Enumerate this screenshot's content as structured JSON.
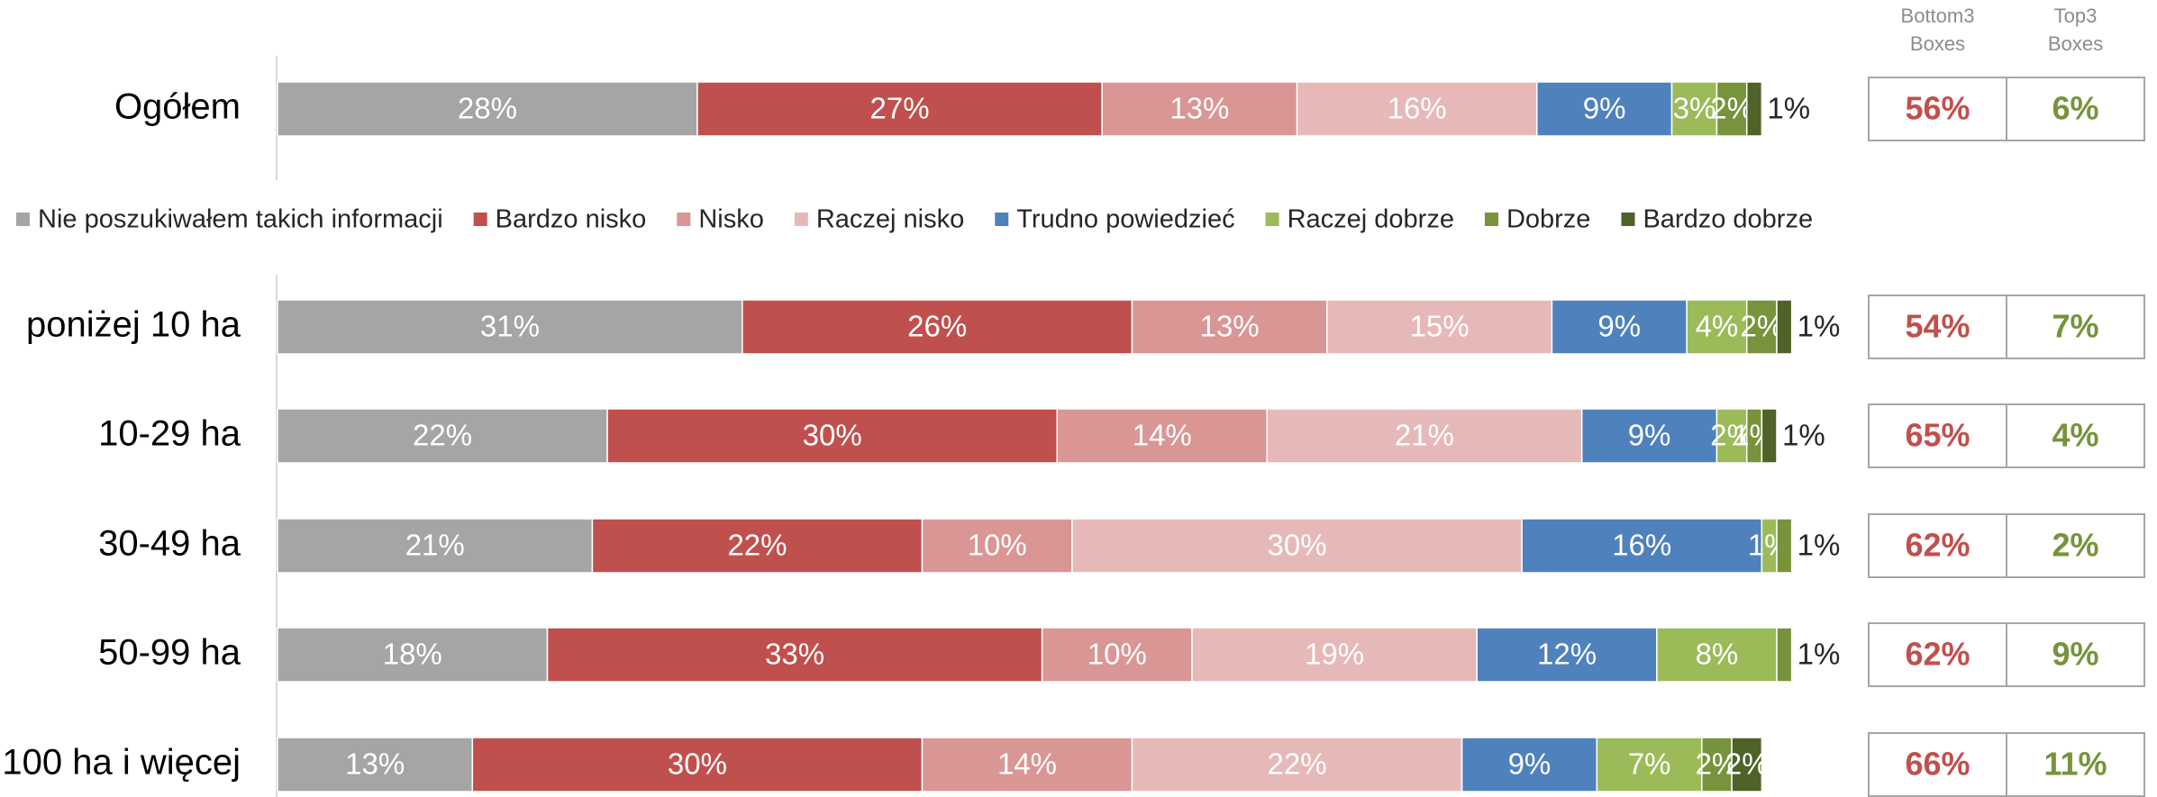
{
  "chart_data": {
    "type": "stacked-bar",
    "categories": [
      "Ogółem",
      "poniżej 10 ha",
      "10-29 ha",
      "30-49 ha",
      "50-99 ha",
      "100 ha i więcej"
    ],
    "xlim": [
      0,
      100
    ],
    "series": [
      {
        "name": "Nie poszukiwałem takich informacji",
        "color": "#a5a5a5",
        "values": [
          28,
          31,
          22,
          21,
          18,
          13
        ],
        "value_labels": [
          "28%",
          "31%",
          "22%",
          "21%",
          "18%",
          "13%"
        ]
      },
      {
        "name": "Bardzo nisko",
        "color": "#c0504d",
        "values": [
          27,
          26,
          30,
          22,
          33,
          30
        ],
        "value_labels": [
          "27%",
          "26%",
          "30%",
          "22%",
          "33%",
          "30%"
        ]
      },
      {
        "name": "Nisko",
        "color": "#d99694",
        "values": [
          13,
          13,
          14,
          10,
          10,
          14
        ],
        "value_labels": [
          "13%",
          "13%",
          "14%",
          "10%",
          "10%",
          "14%"
        ]
      },
      {
        "name": "Raczej nisko",
        "color": "#e6b9b8",
        "values": [
          16,
          15,
          21,
          30,
          19,
          22
        ],
        "value_labels": [
          "16%",
          "15%",
          "21%",
          "30%",
          "19%",
          "22%"
        ]
      },
      {
        "name": "Trudno powiedzieć",
        "color": "#4f81bd",
        "values": [
          9,
          9,
          9,
          16,
          12,
          9
        ],
        "value_labels": [
          "9%",
          "9%",
          "9%",
          "16%",
          "12%",
          "9%"
        ]
      },
      {
        "name": "Raczej dobrze",
        "color": "#9bbb59",
        "values": [
          3,
          4,
          2,
          1,
          8,
          7
        ],
        "value_labels": [
          "3%",
          "4%",
          "2%",
          "1%",
          "8%",
          "7%"
        ]
      },
      {
        "name": "Dobrze",
        "color": "#77933c",
        "values": [
          2,
          2,
          1,
          1,
          1,
          2
        ],
        "value_labels": [
          "2%",
          "2%",
          "1%",
          "1%",
          "1%",
          "2%"
        ]
      },
      {
        "name": "Bardzo dobrze",
        "color": "#4f6228",
        "values": [
          1,
          1,
          1,
          0,
          0,
          2
        ],
        "value_labels": [
          "1%",
          "1%",
          "1%",
          null,
          null,
          "2%"
        ]
      }
    ],
    "boxes": [
      {
        "header": [
          "Bottom3",
          "Boxes"
        ],
        "color": "#c0504d",
        "values": [
          56,
          54,
          65,
          62,
          62,
          66
        ],
        "value_labels": [
          "56%",
          "54%",
          "65%",
          "62%",
          "62%",
          "66%"
        ]
      },
      {
        "header": [
          "Top3",
          "Boxes"
        ],
        "color": "#77933c",
        "values": [
          6,
          7,
          4,
          2,
          9,
          11
        ],
        "value_labels": [
          "6%",
          "7%",
          "4%",
          "2%",
          "9%",
          "11%"
        ]
      }
    ]
  }
}
